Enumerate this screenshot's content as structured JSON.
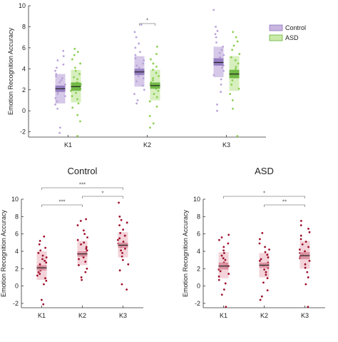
{
  "colors": {
    "control_fill": "#c8b6e0",
    "control_dot": "#b9a3d9",
    "control_box": "#8e77bd",
    "asd_fill": "#c9eaa8",
    "asd_dot": "#8ccf52",
    "asd_box": "#67b43a",
    "dark_fill": "#efc4cc",
    "dark_dot": "#9e0f2b",
    "dark_box": "#d98d9b",
    "bracket": "#888888",
    "axis": "#333333"
  },
  "chart_data": [
    {
      "type": "scatter",
      "title": "",
      "xlabel": "",
      "ylabel": "Emotion Recognition Accuracy",
      "ylim": [
        -2.5,
        10
      ],
      "yticks": [
        "-2",
        "0",
        "2",
        "4",
        "6",
        "8",
        "10"
      ],
      "categories": [
        "K1",
        "K2",
        "K3"
      ],
      "legend_position": "top-right",
      "series": [
        {
          "name": "Control",
          "style": "control",
          "mean": [
            2.1,
            3.7,
            4.6
          ],
          "ci": [
            [
              1.8,
              2.4
            ],
            [
              3.4,
              4.0
            ],
            [
              4.3,
              5.0
            ]
          ],
          "band": [
            [
              0.7,
              3.5
            ],
            [
              2.3,
              5.2
            ],
            [
              3.2,
              6.1
            ]
          ],
          "points": [
            [
              -2.1,
              -1.6,
              0.2,
              0.6,
              0.9,
              1.2,
              1.4,
              1.6,
              1.8,
              2.0,
              2.1,
              2.3,
              2.5,
              2.7,
              2.9,
              3.1,
              3.3,
              3.5,
              3.8,
              4.1,
              4.4,
              4.8,
              5.2,
              5.7
            ],
            [
              0.7,
              1.0,
              1.6,
              2.0,
              2.4,
              2.8,
              3.1,
              3.3,
              3.5,
              3.7,
              3.9,
              4.1,
              4.3,
              4.5,
              4.8,
              5.0,
              5.3,
              5.6,
              6.0,
              6.4,
              7.0,
              7.5,
              8.2
            ],
            [
              0.0,
              0.6,
              1.8,
              2.5,
              3.0,
              3.4,
              3.8,
              4.1,
              4.3,
              4.5,
              4.7,
              4.9,
              5.1,
              5.3,
              5.5,
              5.8,
              6.1,
              6.5,
              7.0,
              7.3,
              7.6,
              8.0,
              9.6
            ]
          ]
        },
        {
          "name": "ASD",
          "style": "asd",
          "mean": [
            2.3,
            2.4,
            3.5
          ],
          "ci": [
            [
              1.9,
              2.7
            ],
            [
              2.1,
              2.7
            ],
            [
              3.1,
              3.9
            ]
          ],
          "band": [
            [
              0.8,
              3.9
            ],
            [
              1.0,
              3.9
            ],
            [
              1.9,
              5.2
            ]
          ],
          "points": [
            [
              -2.4,
              -1.0,
              -0.4,
              0.3,
              0.7,
              1.1,
              1.4,
              1.7,
              1.9,
              2.1,
              2.3,
              2.5,
              2.7,
              3.0,
              3.2,
              3.5,
              3.8,
              4.1,
              4.5,
              4.9,
              5.3,
              5.6,
              5.9
            ],
            [
              -1.6,
              -1.2,
              -0.5,
              0.4,
              0.9,
              1.3,
              1.6,
              1.9,
              2.1,
              2.3,
              2.5,
              2.7,
              2.9,
              3.1,
              3.3,
              3.6,
              3.9,
              4.2,
              4.5,
              4.9,
              5.4,
              6.1
            ],
            [
              -2.4,
              0.2,
              1.0,
              1.6,
              2.1,
              2.5,
              2.9,
              3.2,
              3.4,
              3.6,
              3.8,
              4.0,
              4.2,
              4.5,
              4.8,
              5.1,
              5.4,
              5.8,
              6.2,
              6.6,
              7.0,
              7.5
            ]
          ]
        }
      ],
      "significance": [
        {
          "from": 1,
          "to": 1,
          "level": 0,
          "label": "*"
        }
      ]
    },
    {
      "type": "scatter",
      "title": "Control",
      "xlabel": "",
      "ylabel": "Emotion Recognition Accuracy",
      "ylim": [
        -2.5,
        10
      ],
      "yticks": [
        "-2",
        "0",
        "2",
        "4",
        "6",
        "8",
        "10"
      ],
      "categories": [
        "K1",
        "K2",
        "K3"
      ],
      "series": [
        {
          "name": "",
          "style": "dark",
          "mean": [
            2.1,
            3.7,
            4.7
          ],
          "ci": [
            [
              1.8,
              2.4
            ],
            [
              3.4,
              4.0
            ],
            [
              4.4,
              5.0
            ]
          ],
          "band": [
            [
              0.7,
              4.0
            ],
            [
              2.4,
              5.2
            ],
            [
              3.3,
              6.2
            ]
          ],
          "points": [
            [
              -2.1,
              -1.6,
              0.2,
              0.6,
              0.9,
              1.2,
              1.4,
              1.6,
              1.8,
              2.0,
              2.1,
              2.3,
              2.5,
              2.7,
              2.9,
              3.1,
              3.3,
              3.5,
              3.8,
              4.1,
              4.4,
              4.8,
              5.2,
              5.7
            ],
            [
              0.7,
              1.0,
              1.6,
              2.0,
              2.4,
              2.8,
              3.1,
              3.3,
              3.5,
              3.7,
              3.9,
              4.1,
              4.3,
              4.5,
              4.8,
              5.0,
              5.3,
              5.6,
              6.0,
              6.4,
              7.0,
              7.5,
              7.7
            ],
            [
              -0.4,
              0.2,
              1.8,
              2.5,
              3.0,
              3.4,
              3.8,
              4.1,
              4.3,
              4.5,
              4.7,
              4.9,
              5.1,
              5.3,
              5.5,
              5.8,
              6.1,
              6.5,
              7.0,
              7.3,
              7.6,
              8.0,
              9.6
            ]
          ]
        }
      ],
      "significance": [
        {
          "from": 0,
          "to": 2,
          "level": 2,
          "label": "***"
        },
        {
          "from": 1,
          "to": 2,
          "level": 1,
          "label": "*"
        },
        {
          "from": 0,
          "to": 1,
          "level": 0,
          "label": "***"
        }
      ]
    },
    {
      "type": "scatter",
      "title": "ASD",
      "xlabel": "",
      "ylabel": "Emotion Recognition Accuracy",
      "ylim": [
        -2.5,
        10
      ],
      "yticks": [
        "-2",
        "0",
        "2",
        "4",
        "6",
        "8",
        "10"
      ],
      "categories": [
        "K1",
        "K2",
        "K3"
      ],
      "series": [
        {
          "name": "",
          "style": "dark",
          "mean": [
            2.3,
            2.4,
            3.5
          ],
          "ci": [
            [
              1.9,
              2.7
            ],
            [
              2.1,
              2.7
            ],
            [
              3.1,
              3.9
            ]
          ],
          "band": [
            [
              0.9,
              3.9
            ],
            [
              1.0,
              3.8
            ],
            [
              2.0,
              5.2
            ]
          ],
          "points": [
            [
              -2.4,
              -1.0,
              -0.4,
              0.3,
              0.7,
              1.1,
              1.4,
              1.7,
              1.9,
              2.1,
              2.3,
              2.5,
              2.7,
              3.0,
              3.2,
              3.5,
              3.8,
              4.1,
              4.5,
              4.9,
              5.3,
              5.6,
              5.9
            ],
            [
              -1.6,
              -1.2,
              -0.5,
              0.4,
              0.9,
              1.3,
              1.6,
              1.9,
              2.1,
              2.3,
              2.5,
              2.7,
              2.9,
              3.1,
              3.3,
              3.6,
              3.9,
              4.2,
              4.5,
              4.9,
              5.4,
              6.1
            ],
            [
              -2.4,
              0.2,
              1.0,
              1.6,
              2.1,
              2.5,
              2.9,
              3.2,
              3.4,
              3.6,
              3.8,
              4.0,
              4.2,
              4.5,
              4.8,
              5.1,
              5.4,
              5.8,
              6.2,
              6.6,
              7.0,
              7.5
            ]
          ]
        }
      ],
      "significance": [
        {
          "from": 0,
          "to": 2,
          "level": 1,
          "label": "*"
        },
        {
          "from": 1,
          "to": 2,
          "level": 0,
          "label": "**"
        }
      ]
    }
  ]
}
